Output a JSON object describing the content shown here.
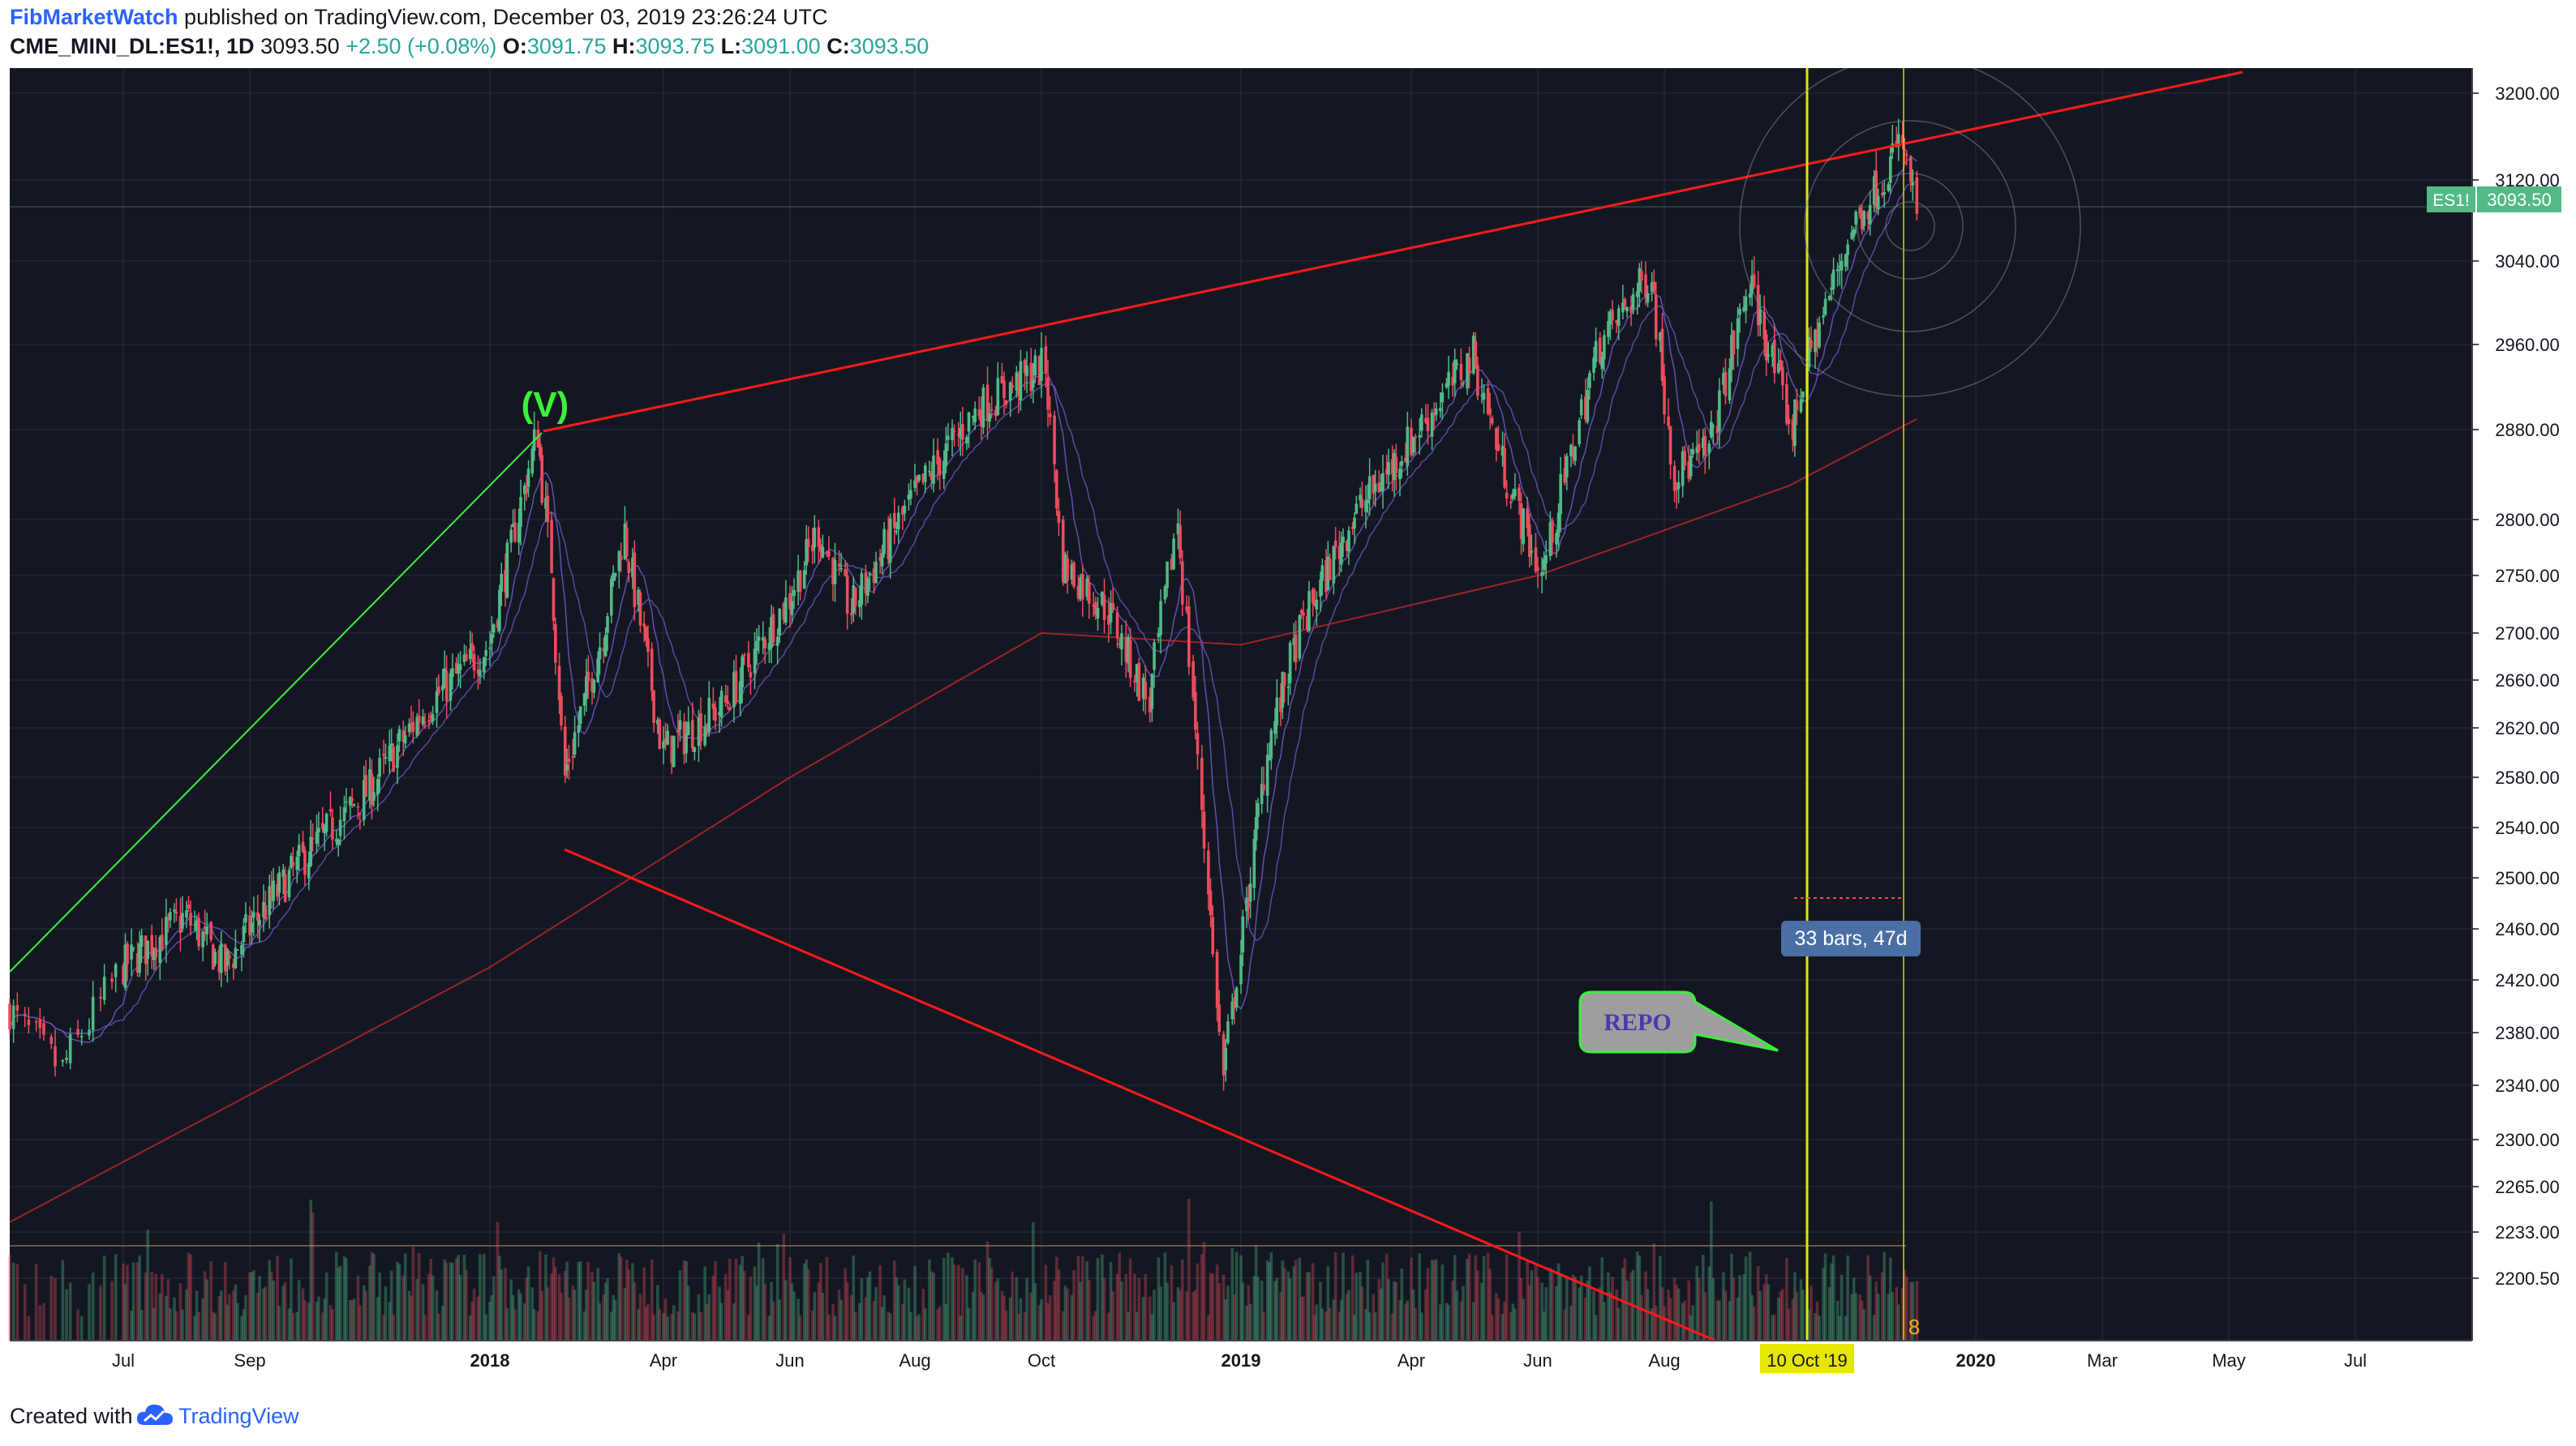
{
  "header": {
    "author": "FibMarketWatch",
    "published_text": "published on TradingView.com, December 03, 2019 23:26:24 UTC",
    "symbol": "CME_MINI_DL:ES1!, 1D",
    "last": "3093.50",
    "change": "+2.50 (+0.08%)",
    "o_label": "O:",
    "o": "3091.75",
    "h_label": "H:",
    "h": "3093.75",
    "l_label": "L:",
    "l": "3091.00",
    "c_label": "C:",
    "c": "3093.50"
  },
  "footer": {
    "created_with": "Created with",
    "brand": "TradingView"
  },
  "colors": {
    "background": "#131722",
    "up": "#53b987",
    "down": "#eb4d5c",
    "trendline": "#ff1a1a",
    "wave_line": "#3cf03c",
    "vertical_marker": "#e6e600",
    "price_badge": "#53b987",
    "measure_badge": "#4a6fa5"
  },
  "chart_data": {
    "type": "candlestick",
    "symbol": "ES1!",
    "x_axis": {
      "ticks": [
        "Jul",
        "Sep",
        "2018",
        "Apr",
        "Jun",
        "Aug",
        "Oct",
        "2019",
        "Apr",
        "Jun",
        "Aug",
        "10 Oct '19",
        "2020",
        "Mar",
        "May",
        "Jul"
      ],
      "highlighted_tick": "10 Oct '19"
    },
    "y_axis": {
      "ticks": [
        "3200.00",
        "3120.00",
        "3040.00",
        "2960.00",
        "2880.00",
        "2800.00",
        "2750.00",
        "2700.00",
        "2660.00",
        "2620.00",
        "2580.00",
        "2540.00",
        "2500.00",
        "2460.00",
        "2420.00",
        "2380.00",
        "2340.00",
        "2300.00",
        "2265.00",
        "2233.00",
        "2200.50"
      ],
      "range": [
        2180,
        3215
      ],
      "scale": "log"
    },
    "last_price": {
      "label": "ES1!",
      "value": "3093.50"
    },
    "price_path": [
      {
        "date": "2017-06-01",
        "close": 2398
      },
      {
        "date": "2017-06-15",
        "close": 2352
      },
      {
        "date": "2017-07-01",
        "close": 2430
      },
      {
        "date": "2017-08-01",
        "close": 2470
      },
      {
        "date": "2017-08-20",
        "close": 2430
      },
      {
        "date": "2017-09-01",
        "close": 2460
      },
      {
        "date": "2017-10-01",
        "close": 2520
      },
      {
        "date": "2017-11-01",
        "close": 2570
      },
      {
        "date": "2017-12-01",
        "close": 2640
      },
      {
        "date": "2018-01-01",
        "close": 2690
      },
      {
        "date": "2018-01-26",
        "close": 2878
      },
      {
        "date": "2018-02-02",
        "close": 2760
      },
      {
        "date": "2018-02-09",
        "close": 2580
      },
      {
        "date": "2018-03-01",
        "close": 2700
      },
      {
        "date": "2018-03-12",
        "close": 2790
      },
      {
        "date": "2018-04-01",
        "close": 2600
      },
      {
        "date": "2018-05-01",
        "close": 2640
      },
      {
        "date": "2018-06-01",
        "close": 2730
      },
      {
        "date": "2018-06-15",
        "close": 2790
      },
      {
        "date": "2018-07-01",
        "close": 2720
      },
      {
        "date": "2018-08-01",
        "close": 2820
      },
      {
        "date": "2018-09-01",
        "close": 2900
      },
      {
        "date": "2018-10-03",
        "close": 2940
      },
      {
        "date": "2018-10-11",
        "close": 2760
      },
      {
        "date": "2018-11-01",
        "close": 2720
      },
      {
        "date": "2018-11-20",
        "close": 2640
      },
      {
        "date": "2018-12-03",
        "close": 2800
      },
      {
        "date": "2018-12-24",
        "close": 2346
      },
      {
        "date": "2019-01-15",
        "close": 2600
      },
      {
        "date": "2019-02-01",
        "close": 2700
      },
      {
        "date": "2019-03-01",
        "close": 2800
      },
      {
        "date": "2019-04-01",
        "close": 2870
      },
      {
        "date": "2019-05-01",
        "close": 2950
      },
      {
        "date": "2019-05-15",
        "close": 2850
      },
      {
        "date": "2019-06-03",
        "close": 2750
      },
      {
        "date": "2019-07-01",
        "close": 2960
      },
      {
        "date": "2019-07-26",
        "close": 3030
      },
      {
        "date": "2019-08-06",
        "close": 2840
      },
      {
        "date": "2019-08-23",
        "close": 2860
      },
      {
        "date": "2019-09-12",
        "close": 3020
      },
      {
        "date": "2019-10-03",
        "close": 2880
      },
      {
        "date": "2019-10-10",
        "close": 2940
      },
      {
        "date": "2019-11-01",
        "close": 3070
      },
      {
        "date": "2019-11-26",
        "close": 3155
      },
      {
        "date": "2019-12-03",
        "close": 3093.5
      }
    ],
    "moving_average_200": [
      {
        "date": "2017-06-01",
        "value": 2240
      },
      {
        "date": "2018-01-01",
        "value": 2430
      },
      {
        "date": "2018-06-01",
        "value": 2580
      },
      {
        "date": "2018-10-01",
        "value": 2700
      },
      {
        "date": "2019-01-01",
        "value": 2690
      },
      {
        "date": "2019-06-01",
        "value": 2750
      },
      {
        "date": "2019-10-01",
        "value": 2830
      },
      {
        "date": "2019-12-03",
        "value": 2890
      }
    ],
    "annotations": {
      "wave_label": "(V)",
      "callout_text": "REPO",
      "measure_text": "33 bars, 47d",
      "count_label": "8"
    }
  }
}
